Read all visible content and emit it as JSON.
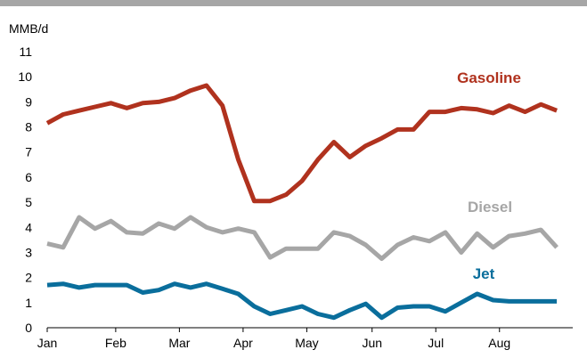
{
  "chart_data": {
    "type": "line",
    "title": "",
    "ylabel": "MMB/d",
    "xlabel": "",
    "ylim": [
      0,
      11
    ],
    "yticks": [
      0,
      1,
      2,
      3,
      4,
      5,
      6,
      7,
      8,
      9,
      10,
      11
    ],
    "xlim": [
      0,
      33
    ],
    "xticks": [
      {
        "label": "Jan",
        "x": 0
      },
      {
        "label": "Feb",
        "x": 4.3
      },
      {
        "label": "Mar",
        "x": 8.3
      },
      {
        "label": "Apr",
        "x": 12.3
      },
      {
        "label": "May",
        "x": 16.3
      },
      {
        "label": "Jun",
        "x": 20.4
      },
      {
        "label": "Jul",
        "x": 24.4
      },
      {
        "label": "Aug",
        "x": 28.4
      }
    ],
    "grid": false,
    "legend": "inline labels",
    "series": [
      {
        "name": "Gasoline",
        "color": "#b0321e",
        "values": [
          8.15,
          8.5,
          8.65,
          8.8,
          8.95,
          8.75,
          8.95,
          9.0,
          9.15,
          9.45,
          9.65,
          8.85,
          6.7,
          5.05,
          5.05,
          5.3,
          5.85,
          6.7,
          7.4,
          6.8,
          7.25,
          7.55,
          7.9,
          7.9,
          8.6,
          8.6,
          8.75,
          8.7,
          8.55,
          8.85,
          8.6,
          8.9,
          8.65
        ]
      },
      {
        "name": "Diesel",
        "color": "#a6a6a6",
        "values": [
          3.35,
          3.2,
          4.4,
          3.95,
          4.25,
          3.8,
          3.75,
          4.15,
          3.95,
          4.4,
          4.0,
          3.8,
          3.95,
          3.8,
          2.8,
          3.15,
          3.15,
          3.15,
          3.8,
          3.65,
          3.3,
          2.75,
          3.3,
          3.6,
          3.45,
          3.8,
          3.0,
          3.75,
          3.2,
          3.65,
          3.75,
          3.9,
          3.2
        ]
      },
      {
        "name": "Jet",
        "color": "#0a6e9c",
        "values": [
          1.7,
          1.75,
          1.6,
          1.7,
          1.7,
          1.7,
          1.4,
          1.5,
          1.75,
          1.6,
          1.75,
          1.55,
          1.35,
          0.85,
          0.55,
          0.7,
          0.85,
          0.55,
          0.4,
          0.7,
          0.95,
          0.4,
          0.8,
          0.85,
          0.85,
          0.65,
          1.0,
          1.35,
          1.1,
          1.05,
          1.05,
          1.05,
          1.05
        ]
      }
    ]
  }
}
